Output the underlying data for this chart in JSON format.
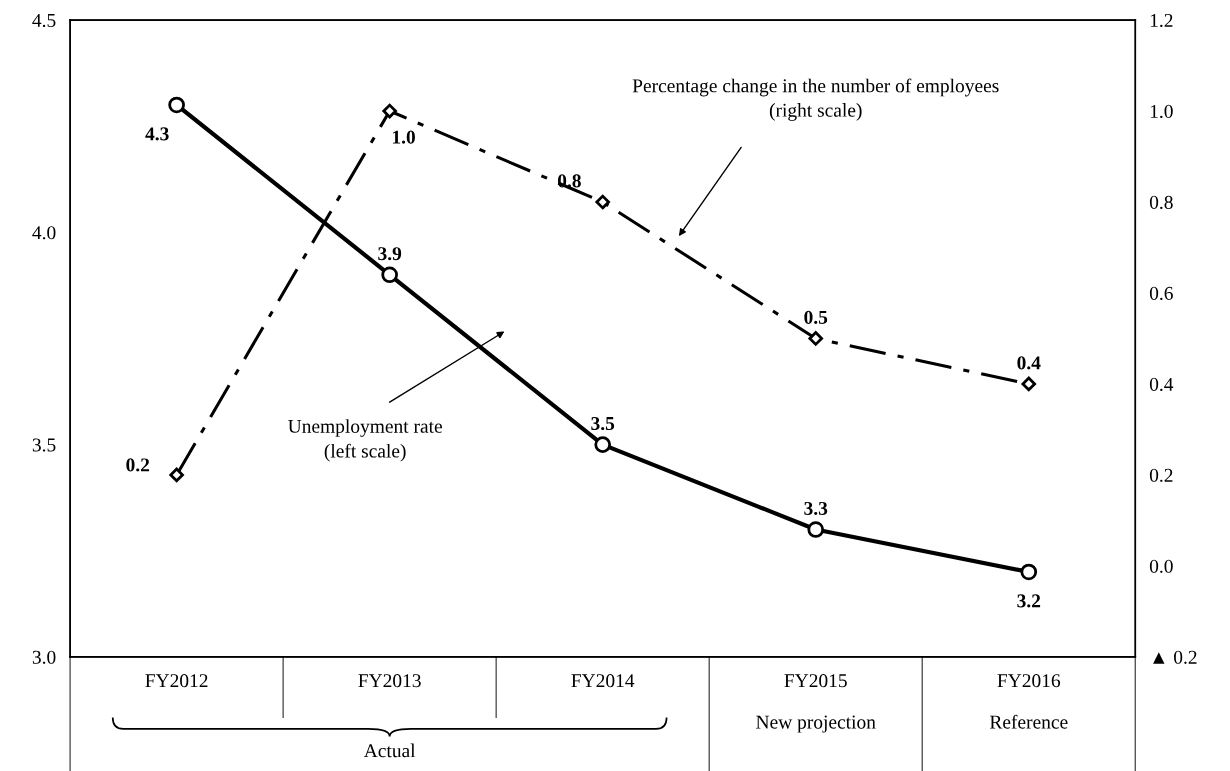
{
  "chart_data": {
    "type": "line",
    "categories": [
      "FY2012",
      "FY2013",
      "FY2014",
      "FY2015",
      "FY2016"
    ],
    "series": [
      {
        "color": "#000000",
        "values": [
          4.3,
          3.9,
          3.5,
          3.3,
          3.2
        ],
        "value_labels": [
          "4.3",
          "3.9",
          "3.5",
          "3.3",
          "3.2"
        ],
        "marker": "circle",
        "line_style": "solid"
      },
      {
        "color": "#000000",
        "values": [
          0.2,
          1.0,
          0.8,
          0.5,
          0.4
        ],
        "value_labels": [
          "0.2",
          "1.0",
          "0.8",
          "0.5",
          "0.4"
        ],
        "axis": "y2",
        "marker": "diamond",
        "line_style": "dashdot"
      }
    ],
    "ylim": [
      3.0,
      4.5
    ],
    "yticks": [
      {
        "value": 3.0,
        "label": "3.0"
      },
      3.5,
      {
        "value": 4.0,
        "label": "4.0"
      },
      4.5
    ],
    "y2lim": [
      -0.2,
      1.2
    ],
    "y2ticks": [
      {
        "value": -0.2,
        "label": "▲ 0.2"
      },
      {
        "value": 0.0,
        "label": "0.0"
      },
      0.2,
      0.4,
      0.6,
      0.8,
      {
        "value": 1.0,
        "label": "1.0"
      },
      1.2
    ],
    "grid": false,
    "legend": false,
    "annotations": [
      "Percentage change in the number of employees\n(right scale)",
      "Unemployment rate\n(left scale)",
      "Actual",
      "New projection",
      "Reference"
    ]
  }
}
